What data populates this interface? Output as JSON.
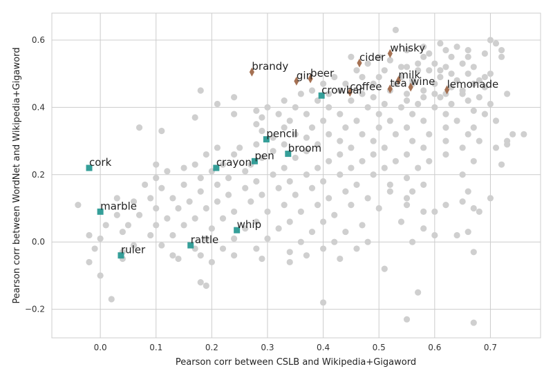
{
  "chart_data": {
    "type": "scatter",
    "xlabel": "Pearson corr between CSLB and Wikipedia+Gigaword",
    "ylabel": "Pearson corr between WordNet and Wikipedia+Gigaword",
    "xlim": [
      -0.087,
      0.79
    ],
    "ylim": [
      -0.285,
      0.68
    ],
    "x_ticks": [
      0.0,
      0.1,
      0.2,
      0.3,
      0.4,
      0.5,
      0.6,
      0.7
    ],
    "x_tick_labels": [
      "0.0",
      "0.1",
      "0.2",
      "0.3",
      "0.4",
      "0.5",
      "0.6",
      "0.7"
    ],
    "y_ticks": [
      -0.2,
      0.0,
      0.2,
      0.4,
      0.6
    ],
    "y_tick_labels": [
      "−0.2",
      "0.0",
      "0.2",
      "0.4",
      "0.6"
    ],
    "grid": true,
    "colors": {
      "background": "#ffffff",
      "grid": "#cccccc",
      "background_points": "#cfcfcf",
      "tools": "#2a9a93",
      "drinks": "#a0694a"
    },
    "background_points": [
      [
        0.53,
        0.63
      ],
      [
        0.7,
        0.6
      ],
      [
        0.71,
        0.59
      ],
      [
        0.61,
        0.59
      ],
      [
        0.58,
        0.58
      ],
      [
        0.62,
        0.57
      ],
      [
        0.66,
        0.57
      ],
      [
        0.55,
        0.57
      ],
      [
        0.45,
        0.55
      ],
      [
        0.5,
        0.55
      ],
      [
        0.58,
        0.55
      ],
      [
        0.63,
        0.55
      ],
      [
        0.69,
        0.56
      ],
      [
        0.72,
        0.55
      ],
      [
        0.52,
        0.54
      ],
      [
        0.48,
        0.53
      ],
      [
        0.6,
        0.53
      ],
      [
        0.65,
        0.53
      ],
      [
        0.55,
        0.52
      ],
      [
        0.62,
        0.52
      ],
      [
        0.67,
        0.52
      ],
      [
        0.46,
        0.51
      ],
      [
        0.51,
        0.51
      ],
      [
        0.57,
        0.51
      ],
      [
        0.59,
        0.51
      ],
      [
        0.63,
        0.5
      ],
      [
        0.66,
        0.5
      ],
      [
        0.7,
        0.5
      ],
      [
        0.42,
        0.49
      ],
      [
        0.47,
        0.49
      ],
      [
        0.54,
        0.49
      ],
      [
        0.61,
        0.49
      ],
      [
        0.64,
        0.48
      ],
      [
        0.68,
        0.48
      ],
      [
        0.4,
        0.47
      ],
      [
        0.44,
        0.47
      ],
      [
        0.49,
        0.47
      ],
      [
        0.56,
        0.47
      ],
      [
        0.6,
        0.47
      ],
      [
        0.69,
        0.46
      ],
      [
        0.38,
        0.45
      ],
      [
        0.43,
        0.45
      ],
      [
        0.52,
        0.45
      ],
      [
        0.58,
        0.45
      ],
      [
        0.65,
        0.45
      ],
      [
        0.36,
        0.44
      ],
      [
        0.41,
        0.44
      ],
      [
        0.47,
        0.44
      ],
      [
        0.55,
        0.44
      ],
      [
        0.61,
        0.43
      ],
      [
        0.68,
        0.43
      ],
      [
        0.73,
        0.44
      ],
      [
        0.18,
        0.45
      ],
      [
        0.24,
        0.43
      ],
      [
        0.33,
        0.42
      ],
      [
        0.39,
        0.42
      ],
      [
        0.45,
        0.42
      ],
      [
        0.51,
        0.41
      ],
      [
        0.57,
        0.41
      ],
      [
        0.63,
        0.41
      ],
      [
        0.7,
        0.41
      ],
      [
        0.21,
        0.41
      ],
      [
        0.3,
        0.4
      ],
      [
        0.35,
        0.4
      ],
      [
        0.41,
        0.4
      ],
      [
        0.48,
        0.4
      ],
      [
        0.54,
        0.4
      ],
      [
        0.6,
        0.4
      ],
      [
        0.67,
        0.39
      ],
      [
        0.28,
        0.39
      ],
      [
        0.32,
        0.38
      ],
      [
        0.37,
        0.38
      ],
      [
        0.43,
        0.38
      ],
      [
        0.5,
        0.38
      ],
      [
        0.56,
        0.38
      ],
      [
        0.62,
        0.38
      ],
      [
        0.69,
        0.38
      ],
      [
        0.24,
        0.38
      ],
      [
        0.17,
        0.37
      ],
      [
        0.29,
        0.37
      ],
      [
        0.34,
        0.36
      ],
      [
        0.4,
        0.36
      ],
      [
        0.46,
        0.36
      ],
      [
        0.52,
        0.36
      ],
      [
        0.58,
        0.36
      ],
      [
        0.64,
        0.36
      ],
      [
        0.71,
        0.36
      ],
      [
        0.28,
        0.35
      ],
      [
        0.33,
        0.34
      ],
      [
        0.38,
        0.34
      ],
      [
        0.44,
        0.34
      ],
      [
        0.5,
        0.34
      ],
      [
        0.55,
        0.34
      ],
      [
        0.62,
        0.34
      ],
      [
        0.67,
        0.34
      ],
      [
        0.07,
        0.34
      ],
      [
        0.11,
        0.33
      ],
      [
        0.29,
        0.33
      ],
      [
        0.35,
        0.32
      ],
      [
        0.41,
        0.32
      ],
      [
        0.47,
        0.32
      ],
      [
        0.53,
        0.32
      ],
      [
        0.59,
        0.32
      ],
      [
        0.66,
        0.32
      ],
      [
        0.74,
        0.32
      ],
      [
        0.31,
        0.31
      ],
      [
        0.37,
        0.31
      ],
      [
        0.43,
        0.3
      ],
      [
        0.49,
        0.3
      ],
      [
        0.56,
        0.3
      ],
      [
        0.62,
        0.3
      ],
      [
        0.68,
        0.3
      ],
      [
        0.73,
        0.3
      ],
      [
        0.28,
        0.29
      ],
      [
        0.33,
        0.29
      ],
      [
        0.39,
        0.29
      ],
      [
        0.45,
        0.28
      ],
      [
        0.51,
        0.28
      ],
      [
        0.58,
        0.28
      ],
      [
        0.65,
        0.28
      ],
      [
        0.71,
        0.28
      ],
      [
        0.73,
        0.29
      ],
      [
        0.21,
        0.28
      ],
      [
        0.25,
        0.28
      ],
      [
        0.31,
        0.27
      ],
      [
        0.37,
        0.27
      ],
      [
        0.43,
        0.26
      ],
      [
        0.49,
        0.26
      ],
      [
        0.55,
        0.26
      ],
      [
        0.62,
        0.26
      ],
      [
        0.19,
        0.26
      ],
      [
        0.24,
        0.26
      ],
      [
        0.29,
        0.25
      ],
      [
        0.35,
        0.25
      ],
      [
        0.41,
        0.24
      ],
      [
        0.47,
        0.24
      ],
      [
        0.53,
        0.24
      ],
      [
        0.59,
        0.24
      ],
      [
        0.67,
        0.24
      ],
      [
        0.72,
        0.23
      ],
      [
        0.17,
        0.23
      ],
      [
        0.22,
        0.23
      ],
      [
        0.27,
        0.23
      ],
      [
        0.33,
        0.22
      ],
      [
        0.39,
        0.22
      ],
      [
        0.45,
        0.22
      ],
      [
        0.51,
        0.22
      ],
      [
        0.57,
        0.22
      ],
      [
        0.1,
        0.23
      ],
      [
        0.12,
        0.21
      ],
      [
        0.15,
        0.22
      ],
      [
        0.2,
        0.21
      ],
      [
        0.26,
        0.21
      ],
      [
        0.31,
        0.2
      ],
      [
        0.37,
        0.2
      ],
      [
        0.43,
        0.2
      ],
      [
        0.49,
        0.2
      ],
      [
        0.55,
        0.19
      ],
      [
        0.65,
        0.2
      ],
      [
        0.1,
        0.19
      ],
      [
        0.08,
        0.17
      ],
      [
        0.18,
        0.19
      ],
      [
        0.23,
        0.19
      ],
      [
        0.28,
        0.18
      ],
      [
        0.34,
        0.18
      ],
      [
        0.4,
        0.18
      ],
      [
        0.46,
        0.17
      ],
      [
        0.52,
        0.17
      ],
      [
        0.58,
        0.17
      ],
      [
        0.15,
        0.17
      ],
      [
        0.21,
        0.17
      ],
      [
        0.26,
        0.16
      ],
      [
        0.32,
        0.16
      ],
      [
        0.38,
        0.16
      ],
      [
        0.44,
        0.15
      ],
      [
        0.52,
        0.15
      ],
      [
        0.56,
        0.15
      ],
      [
        0.66,
        0.15
      ],
      [
        0.11,
        0.16
      ],
      [
        0.18,
        0.15
      ],
      [
        0.23,
        0.14
      ],
      [
        0.29,
        0.14
      ],
      [
        0.35,
        0.14
      ],
      [
        0.41,
        0.13
      ],
      [
        0.48,
        0.13
      ],
      [
        0.55,
        0.13
      ],
      [
        0.7,
        0.13
      ],
      [
        0.09,
        0.13
      ],
      [
        0.13,
        0.13
      ],
      [
        0.16,
        0.12
      ],
      [
        0.21,
        0.12
      ],
      [
        0.27,
        0.12
      ],
      [
        0.33,
        0.11
      ],
      [
        0.39,
        0.11
      ],
      [
        0.45,
        0.11
      ],
      [
        0.55,
        0.11
      ],
      [
        0.62,
        0.11
      ],
      [
        0.65,
        0.12
      ],
      [
        -0.04,
        0.11
      ],
      [
        0.03,
        0.13
      ],
      [
        0.06,
        0.12
      ],
      [
        0.1,
        0.1
      ],
      [
        0.14,
        0.1
      ],
      [
        0.19,
        0.1
      ],
      [
        0.24,
        0.09
      ],
      [
        0.3,
        0.09
      ],
      [
        0.36,
        0.09
      ],
      [
        0.42,
        0.08
      ],
      [
        0.5,
        0.1
      ],
      [
        0.58,
        0.09
      ],
      [
        0.6,
        0.09
      ],
      [
        0.67,
        0.1
      ],
      [
        0.68,
        0.09
      ],
      [
        0.03,
        0.08
      ],
      [
        0.07,
        0.08
      ],
      [
        0.12,
        0.07
      ],
      [
        0.17,
        0.07
      ],
      [
        0.22,
        0.07
      ],
      [
        0.28,
        0.06
      ],
      [
        0.34,
        0.06
      ],
      [
        0.4,
        0.06
      ],
      [
        0.47,
        0.05
      ],
      [
        0.54,
        0.06
      ],
      [
        0.01,
        0.05
      ],
      [
        0.05,
        0.05
      ],
      [
        0.1,
        0.05
      ],
      [
        0.15,
        0.05
      ],
      [
        0.2,
        0.04
      ],
      [
        0.26,
        0.04
      ],
      [
        0.32,
        0.04
      ],
      [
        0.38,
        0.03
      ],
      [
        0.44,
        0.03
      ],
      [
        0.58,
        0.04
      ],
      [
        0.66,
        0.03
      ],
      [
        -0.02,
        0.02
      ],
      [
        0.04,
        0.03
      ],
      [
        0.09,
        0.02
      ],
      [
        0.13,
        0.02
      ],
      [
        0.19,
        0.01
      ],
      [
        0.24,
        0.01
      ],
      [
        0.3,
        0.01
      ],
      [
        0.36,
        0.0
      ],
      [
        0.42,
        0.0
      ],
      [
        0.48,
        0.0
      ],
      [
        0.56,
        -0.0
      ],
      [
        0.6,
        0.02
      ],
      [
        0.64,
        0.02
      ],
      [
        0.0,
        0.01
      ],
      [
        0.06,
        -0.01
      ],
      [
        0.11,
        -0.01
      ],
      [
        0.17,
        -0.02
      ],
      [
        0.22,
        -0.02
      ],
      [
        0.28,
        -0.02
      ],
      [
        0.34,
        -0.03
      ],
      [
        0.4,
        -0.02
      ],
      [
        0.46,
        -0.02
      ],
      [
        0.67,
        -0.03
      ],
      [
        -0.01,
        -0.02
      ],
      [
        0.04,
        -0.03
      ],
      [
        0.13,
        -0.04
      ],
      [
        0.18,
        -0.04
      ],
      [
        0.24,
        -0.04
      ],
      [
        0.29,
        -0.05
      ],
      [
        0.37,
        -0.04
      ],
      [
        0.43,
        -0.05
      ],
      [
        -0.02,
        -0.06
      ],
      [
        0.04,
        -0.05
      ],
      [
        0.14,
        -0.05
      ],
      [
        0.2,
        -0.06
      ],
      [
        0.34,
        -0.06
      ],
      [
        0.51,
        -0.08
      ],
      [
        0.0,
        -0.1
      ],
      [
        0.18,
        -0.12
      ],
      [
        0.19,
        -0.13
      ],
      [
        0.57,
        -0.15
      ],
      [
        0.02,
        -0.17
      ],
      [
        0.4,
        -0.18
      ],
      [
        0.55,
        -0.23
      ],
      [
        0.67,
        -0.24
      ],
      [
        0.76,
        0.32
      ],
      [
        0.59,
        0.56
      ],
      [
        0.64,
        0.58
      ],
      [
        0.56,
        0.48
      ],
      [
        0.63,
        0.46
      ],
      [
        0.67,
        0.47
      ],
      [
        0.53,
        0.47
      ],
      [
        0.6,
        0.44
      ],
      [
        0.65,
        0.44
      ],
      [
        0.69,
        0.49
      ],
      [
        0.72,
        0.57
      ],
      [
        0.57,
        0.53
      ],
      [
        0.61,
        0.51
      ],
      [
        0.66,
        0.55
      ],
      [
        0.5,
        0.49
      ],
      [
        0.54,
        0.52
      ],
      [
        0.49,
        0.43
      ],
      [
        0.55,
        0.42
      ],
      [
        0.58,
        0.43
      ],
      [
        0.62,
        0.44
      ],
      [
        0.66,
        0.42
      ]
    ],
    "series": [
      {
        "marker": "square",
        "points": [
          {
            "label": "cork",
            "x": -0.02,
            "y": 0.22
          },
          {
            "label": "marble",
            "x": 0.0,
            "y": 0.09
          },
          {
            "label": "ruler",
            "x": 0.037,
            "y": -0.04
          },
          {
            "label": "rattle",
            "x": 0.162,
            "y": -0.01
          },
          {
            "label": "crayon",
            "x": 0.208,
            "y": 0.22
          },
          {
            "label": "whip",
            "x": 0.245,
            "y": 0.035
          },
          {
            "label": "pen",
            "x": 0.277,
            "y": 0.24
          },
          {
            "label": "pencil",
            "x": 0.298,
            "y": 0.305
          },
          {
            "label": "broom",
            "x": 0.337,
            "y": 0.262
          },
          {
            "label": "crowbar",
            "x": 0.397,
            "y": 0.435
          }
        ]
      },
      {
        "marker": "diamond",
        "points": [
          {
            "label": "brandy",
            "x": 0.272,
            "y": 0.505
          },
          {
            "label": "gin",
            "x": 0.352,
            "y": 0.478
          },
          {
            "label": "beer",
            "x": 0.377,
            "y": 0.485
          },
          {
            "label": "coffee",
            "x": 0.448,
            "y": 0.445
          },
          {
            "label": "cider",
            "x": 0.465,
            "y": 0.532
          },
          {
            "label": "whisky",
            "x": 0.52,
            "y": 0.56
          },
          {
            "label": "tea",
            "x": 0.52,
            "y": 0.455
          },
          {
            "label": "milk",
            "x": 0.535,
            "y": 0.48
          },
          {
            "label": "wine",
            "x": 0.557,
            "y": 0.46
          },
          {
            "label": "lemonade",
            "x": 0.622,
            "y": 0.452
          }
        ]
      }
    ]
  }
}
